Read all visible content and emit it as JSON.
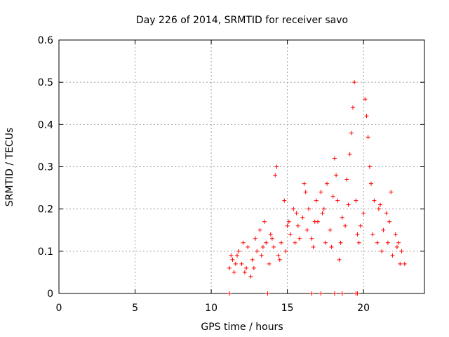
{
  "chart_data": {
    "type": "scatter",
    "title": "Day 226 of 2014, SRMTID for receiver savo",
    "xlabel": "GPS time / hours",
    "ylabel": "SRMTID / TECUs",
    "xlim": [
      0,
      24
    ],
    "ylim": [
      0,
      0.6
    ],
    "xticks": [
      0,
      5,
      10,
      15,
      20
    ],
    "yticks": [
      0,
      0.1,
      0.2,
      0.3,
      0.4,
      0.5,
      0.6
    ],
    "grid": true,
    "marker": "+",
    "series_color": "#ff0000",
    "series": [
      {
        "name": "SRMTID",
        "x": [
          11.2,
          11.4,
          11.5,
          11.7,
          11.8,
          12.0,
          12.1,
          12.3,
          12.4,
          12.6,
          12.7,
          12.9,
          13.0,
          13.2,
          13.3,
          13.5,
          13.6,
          13.8,
          13.9,
          14.1,
          14.2,
          14.3,
          14.5,
          14.6,
          14.8,
          14.9,
          15.1,
          15.2,
          15.4,
          15.5,
          15.7,
          15.8,
          16.0,
          16.1,
          16.3,
          16.4,
          16.6,
          16.7,
          16.9,
          17.0,
          17.2,
          17.3,
          17.5,
          17.6,
          17.8,
          17.9,
          18.1,
          18.2,
          18.3,
          18.5,
          18.6,
          18.8,
          18.9,
          19.1,
          19.2,
          19.3,
          19.4,
          19.5,
          19.7,
          19.8,
          20.0,
          20.1,
          20.2,
          20.3,
          20.4,
          20.6,
          20.7,
          20.9,
          21.0,
          21.2,
          21.3,
          21.5,
          21.6,
          21.8,
          21.9,
          22.1,
          22.2,
          22.4,
          22.5,
          22.7,
          11.3,
          11.6,
          12.2,
          12.8,
          13.4,
          14.0,
          14.4,
          15.0,
          15.6,
          16.2,
          16.8,
          17.4,
          18.0,
          18.4,
          19.0,
          19.6,
          20.5,
          21.1,
          21.7,
          22.3,
          11.2,
          13.7,
          16.6,
          17.2,
          18.1,
          18.6,
          19.5,
          19.6
        ],
        "y": [
          0.06,
          0.08,
          0.05,
          0.09,
          0.1,
          0.07,
          0.12,
          0.06,
          0.11,
          0.04,
          0.08,
          0.13,
          0.1,
          0.15,
          0.09,
          0.17,
          0.12,
          0.07,
          0.14,
          0.11,
          0.28,
          0.3,
          0.08,
          0.12,
          0.22,
          0.1,
          0.17,
          0.14,
          0.2,
          0.12,
          0.16,
          0.13,
          0.18,
          0.26,
          0.15,
          0.2,
          0.13,
          0.11,
          0.22,
          0.17,
          0.24,
          0.19,
          0.12,
          0.26,
          0.15,
          0.11,
          0.32,
          0.28,
          0.22,
          0.12,
          0.18,
          0.16,
          0.27,
          0.33,
          0.38,
          0.44,
          0.5,
          0.22,
          0.12,
          0.16,
          0.19,
          0.46,
          0.42,
          0.37,
          0.3,
          0.14,
          0.22,
          0.12,
          0.2,
          0.1,
          0.15,
          0.19,
          0.12,
          0.24,
          0.09,
          0.14,
          0.11,
          0.07,
          0.1,
          0.07,
          0.09,
          0.07,
          0.05,
          0.06,
          0.11,
          0.13,
          0.09,
          0.16,
          0.19,
          0.24,
          0.17,
          0.2,
          0.23,
          0.08,
          0.21,
          0.14,
          0.26,
          0.21,
          0.17,
          0.12,
          0,
          0,
          0,
          0,
          0,
          0,
          0,
          0
        ]
      }
    ]
  }
}
